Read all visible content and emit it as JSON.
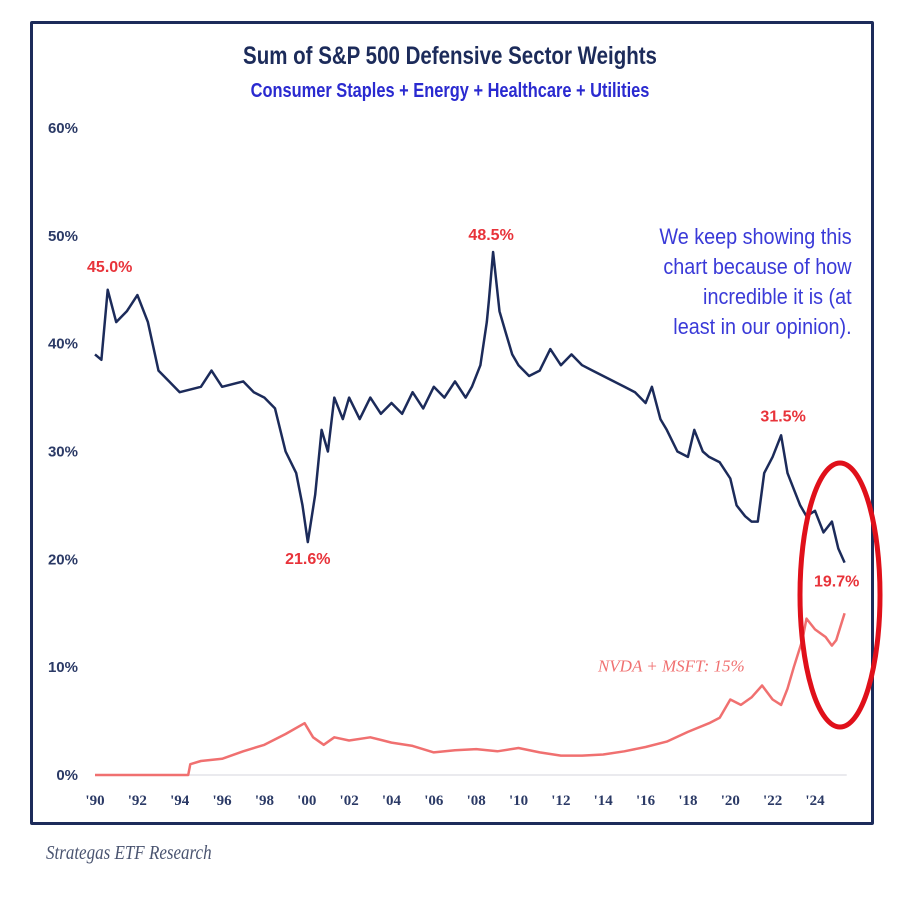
{
  "chart_data": {
    "type": "line",
    "title": "Sum of S&P 500 Defensive Sector Weights",
    "subtitle": "Consumer Staples + Energy + Healthcare + Utilities",
    "xlabel": "",
    "ylabel": "",
    "xlim": [
      1990,
      2025.5
    ],
    "ylim": [
      0,
      60
    ],
    "grid": false,
    "y_ticks": [
      "0%",
      "10%",
      "20%",
      "30%",
      "40%",
      "50%",
      "60%"
    ],
    "y_tick_values": [
      0,
      10,
      20,
      30,
      40,
      50,
      60
    ],
    "x_ticks": [
      "'90",
      "'92",
      "'94",
      "'96",
      "'98",
      "'00",
      "'02",
      "'04",
      "'06",
      "'08",
      "'10",
      "'12",
      "'14",
      "'16",
      "'18",
      "'20",
      "'22",
      "'24"
    ],
    "x_tick_values": [
      1990,
      1992,
      1994,
      1996,
      1998,
      2000,
      2002,
      2004,
      2006,
      2008,
      2010,
      2012,
      2014,
      2016,
      2018,
      2020,
      2022,
      2024
    ],
    "series": [
      {
        "name": "Defensive Sector Weights",
        "color": "#1c2b5a",
        "x": [
          1990,
          1990.3,
          1990.6,
          1991,
          1991.5,
          1992,
          1992.5,
          1993,
          1993.5,
          1994,
          1995,
          1995.5,
          1996,
          1997,
          1997.5,
          1998,
          1998.5,
          1999,
          1999.5,
          1999.8,
          2000.05,
          2000.4,
          2000.7,
          2001,
          2001.3,
          2001.7,
          2002,
          2002.5,
          2003,
          2003.5,
          2004,
          2004.5,
          2005,
          2005.5,
          2006,
          2006.5,
          2007,
          2007.5,
          2007.8,
          2008.2,
          2008.5,
          2008.6,
          2008.8,
          2009.1,
          2009.4,
          2009.7,
          2010,
          2010.5,
          2011,
          2011.5,
          2012,
          2012.5,
          2013,
          2013.5,
          2014,
          2014.5,
          2015,
          2015.5,
          2016,
          2016.3,
          2016.7,
          2017,
          2017.5,
          2018,
          2018.3,
          2018.7,
          2019,
          2019.5,
          2020,
          2020.3,
          2020.7,
          2021,
          2021.3,
          2021.6,
          2022,
          2022.4,
          2022.7,
          2023,
          2023.3,
          2023.6,
          2024,
          2024.4,
          2024.8,
          2025.1,
          2025.4
        ],
        "values": [
          39,
          38.5,
          45,
          42,
          43,
          44.5,
          42,
          37.5,
          36.5,
          35.5,
          36,
          37.5,
          36,
          36.5,
          35.5,
          35,
          34,
          30,
          28,
          25,
          21.6,
          26,
          32,
          30,
          35,
          33,
          35,
          33,
          35,
          33.5,
          34.5,
          33.5,
          35.5,
          34,
          36,
          35,
          36.5,
          35,
          36,
          38,
          42,
          44,
          48.5,
          43,
          41,
          39,
          38,
          37,
          37.5,
          39.5,
          38,
          39,
          38,
          37.5,
          37,
          36.5,
          36,
          35.5,
          34.5,
          36,
          33,
          32,
          30,
          29.5,
          32,
          30,
          29.5,
          29,
          27.5,
          25,
          24,
          23.5,
          23.5,
          28,
          29.5,
          31.5,
          28,
          26.5,
          25,
          24,
          24.5,
          22.5,
          23.5,
          21,
          19.7
        ]
      },
      {
        "name": "NVDA + MSFT",
        "color": "#f07070",
        "x": [
          1990,
          1994.4,
          1994.5,
          1995,
          1996,
          1997,
          1998,
          1999,
          1999.9,
          2000.3,
          2000.8,
          2001.3,
          2002,
          2003,
          2004,
          2005,
          2006,
          2007,
          2008,
          2009,
          2010,
          2011,
          2012,
          2013,
          2014,
          2015,
          2016,
          2017,
          2018,
          2019,
          2019.5,
          2020,
          2020.5,
          2021,
          2021.5,
          2022,
          2022.4,
          2022.7,
          2023,
          2023.4,
          2023.6,
          2024,
          2024.5,
          2024.8,
          2025,
          2025.4
        ],
        "values": [
          0,
          0,
          1,
          1.3,
          1.5,
          2.2,
          2.8,
          3.8,
          4.8,
          3.5,
          2.8,
          3.5,
          3.2,
          3.5,
          3,
          2.7,
          2.1,
          2.3,
          2.4,
          2.2,
          2.5,
          2.1,
          1.8,
          1.8,
          1.9,
          2.2,
          2.6,
          3.1,
          4,
          4.8,
          5.3,
          7,
          6.5,
          7.2,
          8.3,
          7,
          6.5,
          8,
          10,
          12.5,
          14.5,
          13.5,
          12.8,
          12,
          12.5,
          15
        ]
      }
    ],
    "annotations": [
      {
        "text": "45.0%",
        "x": 1990.6,
        "y": 45.0,
        "color": "#e8333a"
      },
      {
        "text": "21.6%",
        "x": 2000.05,
        "y": 21.6,
        "color": "#e8333a"
      },
      {
        "text": "48.5%",
        "x": 2008.8,
        "y": 48.5,
        "color": "#e8333a"
      },
      {
        "text": "31.5%",
        "x": 2022.4,
        "y": 31.5,
        "color": "#e8333a"
      },
      {
        "text": "19.7%",
        "x": 2025.4,
        "y": 19.7,
        "color": "#e8333a"
      },
      {
        "text": "NVDA + MSFT: 15%",
        "x": 2025.4,
        "y": 15,
        "color": "#f07070"
      }
    ],
    "note": [
      "We keep showing this",
      "chart because of how",
      "incredible it is (at",
      "least in our opinion)."
    ],
    "highlight_color": "#e0101a"
  },
  "footer": "Strategas ETF Research"
}
